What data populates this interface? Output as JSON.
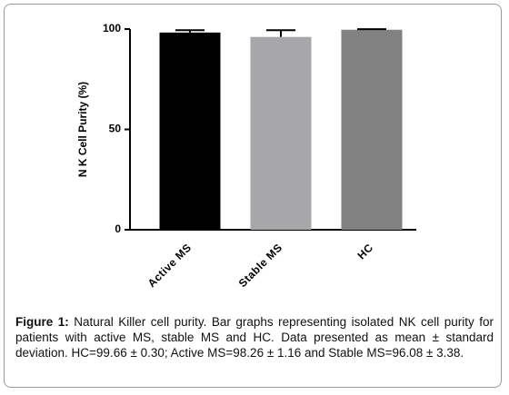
{
  "chart_data": {
    "type": "bar",
    "y_label": "N K  Cell Purity (%)",
    "categories": [
      "Active MS",
      "Stable MS",
      "HC"
    ],
    "values": [
      98.26,
      96.08,
      99.66
    ],
    "errors": [
      1.16,
      3.38,
      0.3
    ],
    "colors": [
      "#000000",
      "#a7a7a9",
      "#818181"
    ],
    "ylim": [
      0,
      100
    ],
    "yticks": [
      0,
      50,
      100
    ]
  },
  "caption": {
    "label": "Figure 1:",
    "text": "Natural Killer cell purity. Bar graphs representing isolated NK cell purity for patients with active MS, stable MS and HC. Data presented as mean ± standard deviation. HC=99.66 ± 0.30; Active MS=98.26 ± 1.16 and Stable MS=96.08 ± 3.38."
  }
}
